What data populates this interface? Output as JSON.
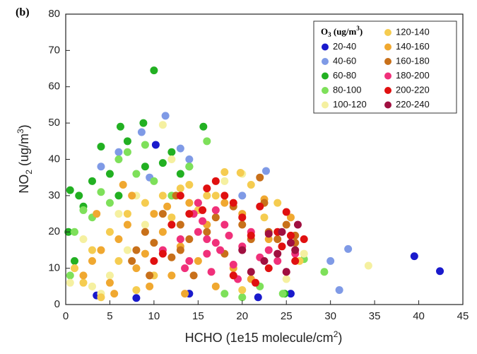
{
  "chart_data": {
    "type": "scatter",
    "panel_label": "(b)",
    "xlabel_parts": [
      "HCHO (1e15 molecule/cm",
      "2",
      ")"
    ],
    "ylabel_parts": [
      "NO",
      "2",
      " (ug/m",
      "3",
      ")"
    ],
    "legend_title_parts": [
      "O",
      "3",
      " (ug/m",
      "3",
      ")"
    ],
    "legend": "upper right",
    "xlim": [
      0,
      45
    ],
    "xticks": [
      0,
      5,
      10,
      15,
      20,
      25,
      30,
      35,
      40,
      45
    ],
    "ylim": [
      0,
      80
    ],
    "yticks": [
      0,
      10,
      20,
      30,
      40,
      50,
      60,
      70,
      80
    ],
    "series": [
      {
        "name": "20-40",
        "color": "#1a1acc",
        "x": [
          10.2,
          39.5,
          42.4,
          25.5,
          21.8,
          3.5,
          8,
          14
        ],
        "values": [
          44,
          13.3,
          9.2,
          3,
          2,
          2.5,
          1.8,
          3
        ]
      },
      {
        "name": "40-60",
        "color": "#7f9ae6",
        "x": [
          11.3,
          8.6,
          30,
          32,
          31,
          22.7,
          13,
          6,
          4,
          14,
          9.5,
          20
        ],
        "values": [
          52,
          47.5,
          12,
          15.3,
          4,
          36.8,
          43,
          42,
          38,
          40,
          35,
          30
        ]
      },
      {
        "name": "60-80",
        "color": "#22b022",
        "x": [
          10,
          6.2,
          8.8,
          15.6,
          1.5,
          3,
          5,
          7,
          12,
          0.5,
          2,
          4,
          9,
          11,
          13,
          0.3,
          24.8,
          1,
          6,
          14
        ],
        "values": [
          64.5,
          49,
          50,
          49,
          30,
          34,
          36,
          45,
          42,
          31.5,
          27,
          43.5,
          38,
          39,
          36,
          20,
          3,
          12,
          30,
          38
        ]
      },
      {
        "name": "80-100",
        "color": "#7ee05a",
        "x": [
          29.3,
          27,
          24.6,
          16,
          2,
          4,
          6,
          8,
          10,
          12,
          1,
          3,
          5,
          7,
          9,
          0.5,
          20,
          22,
          18,
          14
        ],
        "values": [
          9,
          12.5,
          3,
          45,
          26,
          31,
          40,
          36,
          34,
          30,
          20,
          24,
          28,
          42,
          44,
          8,
          2,
          5,
          3,
          38
        ]
      },
      {
        "name": "100-120",
        "color": "#f5f0a0",
        "x": [
          34.3,
          27,
          11,
          1,
          3,
          5,
          7,
          9,
          2,
          4,
          6,
          20,
          23,
          25,
          18,
          0.5,
          8,
          12
        ],
        "values": [
          10.7,
          14,
          49.5,
          10,
          5,
          8,
          15,
          22,
          18,
          3,
          25,
          36,
          20,
          7,
          34,
          6,
          30,
          40
        ]
      },
      {
        "name": "120-140",
        "color": "#f5cc50",
        "x": [
          18,
          19.8,
          21,
          22.5,
          16,
          5,
          7,
          9,
          11,
          13,
          3,
          1,
          2,
          6,
          8,
          10,
          12,
          14,
          17,
          15,
          4,
          24,
          20,
          26.5
        ],
        "values": [
          36.5,
          36.3,
          33,
          24,
          30,
          20,
          25,
          28,
          30,
          32,
          15,
          10,
          6,
          12,
          4,
          8,
          24,
          33,
          30,
          26,
          2,
          28,
          4,
          12
        ]
      },
      {
        "name": "140-160",
        "color": "#f0a830",
        "x": [
          2,
          3,
          4,
          5,
          6,
          7,
          8,
          9,
          10,
          11,
          12,
          13,
          14,
          15,
          3.5,
          5.5,
          7.5,
          9.5,
          11.5,
          13.5,
          16,
          18,
          20,
          22.5,
          23,
          25.5,
          17,
          19,
          21,
          6.5
        ],
        "values": [
          8,
          12,
          15,
          6,
          18,
          22,
          10,
          14,
          25,
          20,
          8,
          16,
          28,
          12,
          25,
          3,
          30,
          5,
          27,
          3,
          22,
          28,
          25,
          29,
          18,
          24,
          5,
          10,
          7,
          33
        ]
      },
      {
        "name": "160-180",
        "color": "#c8701a",
        "x": [
          8,
          9,
          10,
          11,
          12,
          13,
          14,
          15,
          16,
          17,
          18,
          19,
          20,
          21,
          22,
          23,
          24,
          25,
          26,
          7.5,
          12.5,
          9.5,
          14.5,
          13,
          22.5,
          26
        ],
        "values": [
          15,
          20,
          17,
          25,
          13,
          22,
          18,
          28,
          20,
          24,
          14,
          27,
          22,
          18,
          35,
          20,
          18,
          22,
          17,
          12,
          30,
          8,
          8,
          15,
          28,
          19
        ]
      },
      {
        "name": "180-200",
        "color": "#f0307a",
        "x": [
          11,
          13,
          14,
          15,
          16,
          17,
          18,
          19,
          20,
          21,
          22,
          15.5,
          16.5,
          17.5,
          18.5,
          19.5,
          14.5,
          13.5,
          23,
          24,
          25,
          26,
          15,
          16,
          17
        ],
        "values": [
          15,
          18,
          12,
          20,
          14,
          17,
          22,
          11,
          16,
          20,
          13,
          23,
          9,
          15,
          19,
          7,
          25,
          10,
          15,
          12,
          9,
          14,
          28,
          18,
          26
        ]
      },
      {
        "name": "200-220",
        "color": "#e01010",
        "x": [
          10,
          12,
          11,
          14,
          17,
          19,
          20,
          21,
          22,
          23,
          24,
          25,
          25.5,
          26,
          27,
          18,
          13,
          19,
          16,
          21.5,
          15.5,
          24.5
        ],
        "values": [
          12,
          22,
          14,
          25,
          34,
          28,
          24,
          19,
          27,
          10,
          20,
          25.5,
          19,
          12,
          18,
          30,
          30,
          8,
          32,
          6,
          26,
          16
        ]
      },
      {
        "name": "220-240",
        "color": "#a01040",
        "x": [
          23,
          24,
          25,
          25.5,
          26,
          22.5,
          24.5,
          20,
          21,
          26.3
        ],
        "values": [
          19.5,
          14,
          9,
          17,
          15,
          12,
          20,
          15,
          9,
          22
        ]
      }
    ]
  }
}
